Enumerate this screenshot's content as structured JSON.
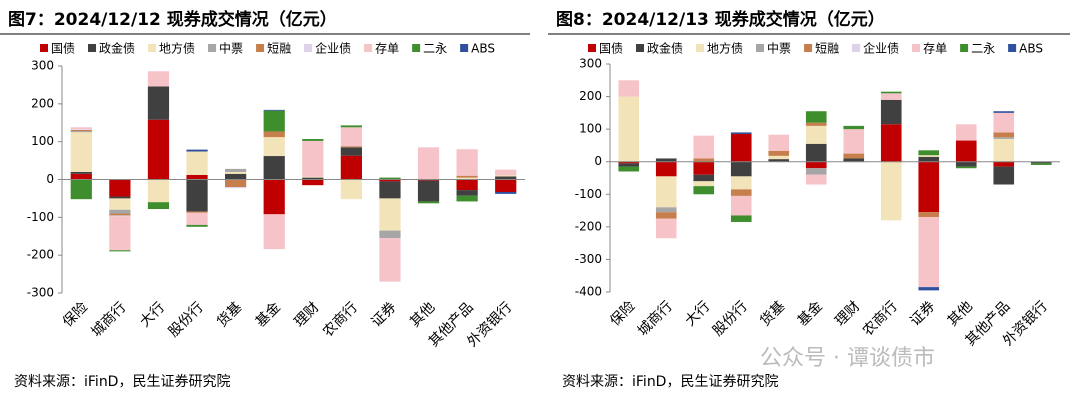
{
  "chart_data": [
    {
      "type": "bar",
      "stacked": true,
      "title": "图7：2024/12/12 现券成交情况（亿元）",
      "source": "资料来源：iFinD，民生证券研究院",
      "categories": [
        "保险",
        "城商行",
        "大行",
        "股份行",
        "货基",
        "基金",
        "理财",
        "农商行",
        "证券",
        "其他",
        "其他产品",
        "外资银行"
      ],
      "ylim": [
        -300,
        300
      ],
      "yticks": [
        -300,
        -200,
        -100,
        0,
        100,
        200,
        300
      ],
      "series": [
        {
          "name": "国债",
          "color": "#c00000",
          "values": [
            15,
            -45,
            158,
            12,
            0,
            -92,
            -15,
            63,
            -5,
            -3,
            -28,
            -33
          ]
        },
        {
          "name": "政金债",
          "color": "#404040",
          "values": [
            5,
            -5,
            88,
            -85,
            15,
            62,
            5,
            22,
            -45,
            -55,
            -15,
            8
          ]
        },
        {
          "name": "地方债",
          "color": "#f2e3b8",
          "values": [
            105,
            -30,
            -60,
            62,
            5,
            50,
            2,
            -52,
            -85,
            0,
            5,
            3
          ]
        },
        {
          "name": "中票",
          "color": "#a6a6a6",
          "values": [
            3,
            -10,
            0,
            0,
            8,
            0,
            0,
            0,
            -20,
            0,
            0,
            0
          ]
        },
        {
          "name": "短融",
          "color": "#c67f4c",
          "values": [
            3,
            -5,
            0,
            -3,
            -20,
            15,
            0,
            3,
            0,
            0,
            5,
            0
          ]
        },
        {
          "name": "企业债",
          "color": "#ddd3e8",
          "values": [
            2,
            -2,
            0,
            0,
            -3,
            0,
            0,
            0,
            0,
            0,
            0,
            0
          ]
        },
        {
          "name": "存单",
          "color": "#f6c3c9",
          "values": [
            5,
            -90,
            40,
            -32,
            0,
            -92,
            95,
            50,
            -115,
            85,
            70,
            15
          ]
        },
        {
          "name": "二永",
          "color": "#3e8e2e",
          "values": [
            -52,
            -3,
            -18,
            -5,
            0,
            55,
            5,
            5,
            5,
            -5,
            -15,
            0
          ]
        },
        {
          "name": "ABS",
          "color": "#2f4f9f",
          "values": [
            0,
            0,
            0,
            5,
            0,
            2,
            0,
            0,
            0,
            0,
            0,
            -5
          ]
        }
      ]
    },
    {
      "type": "bar",
      "stacked": true,
      "title": "图8：2024/12/13 现券成交情况（亿元）",
      "source": "资料来源：iFinD，民生证券研究院",
      "categories": [
        "保险",
        "城商行",
        "大行",
        "股份行",
        "货基",
        "基金",
        "理财",
        "农商行",
        "证券",
        "其他",
        "其他产品",
        "外资银行"
      ],
      "ylim": [
        -400,
        300
      ],
      "yticks": [
        -400,
        -300,
        -200,
        -100,
        0,
        100,
        200,
        300
      ],
      "series": [
        {
          "name": "国债",
          "color": "#c00000",
          "values": [
            -5,
            -45,
            -40,
            85,
            0,
            -20,
            0,
            115,
            -155,
            65,
            -15,
            0
          ]
        },
        {
          "name": "政金债",
          "color": "#404040",
          "values": [
            -10,
            10,
            -20,
            -45,
            8,
            55,
            10,
            75,
            15,
            -15,
            -55,
            -5
          ]
        },
        {
          "name": "地方债",
          "color": "#f2e3b8",
          "values": [
            200,
            -95,
            -15,
            -40,
            10,
            55,
            0,
            -180,
            5,
            0,
            70,
            0
          ]
        },
        {
          "name": "中票",
          "color": "#a6a6a6",
          "values": [
            0,
            -15,
            0,
            0,
            0,
            -20,
            0,
            0,
            0,
            0,
            5,
            0
          ]
        },
        {
          "name": "短融",
          "color": "#c67f4c",
          "values": [
            0,
            -20,
            10,
            -20,
            15,
            10,
            15,
            0,
            -15,
            0,
            15,
            0
          ]
        },
        {
          "name": "企业债",
          "color": "#ddd3e8",
          "values": [
            0,
            0,
            0,
            0,
            0,
            0,
            0,
            0,
            0,
            0,
            0,
            0
          ]
        },
        {
          "name": "存单",
          "color": "#f6c3c9",
          "values": [
            50,
            -60,
            70,
            -60,
            50,
            -30,
            75,
            20,
            -215,
            50,
            60,
            0
          ]
        },
        {
          "name": "二永",
          "color": "#3e8e2e",
          "values": [
            -15,
            0,
            -25,
            -20,
            0,
            35,
            10,
            5,
            15,
            -5,
            0,
            -5
          ]
        },
        {
          "name": "ABS",
          "color": "#2f4f9f",
          "values": [
            0,
            0,
            0,
            5,
            0,
            0,
            0,
            0,
            -10,
            0,
            5,
            0
          ]
        }
      ]
    }
  ],
  "watermark": "公众号 · 谭谈债市"
}
